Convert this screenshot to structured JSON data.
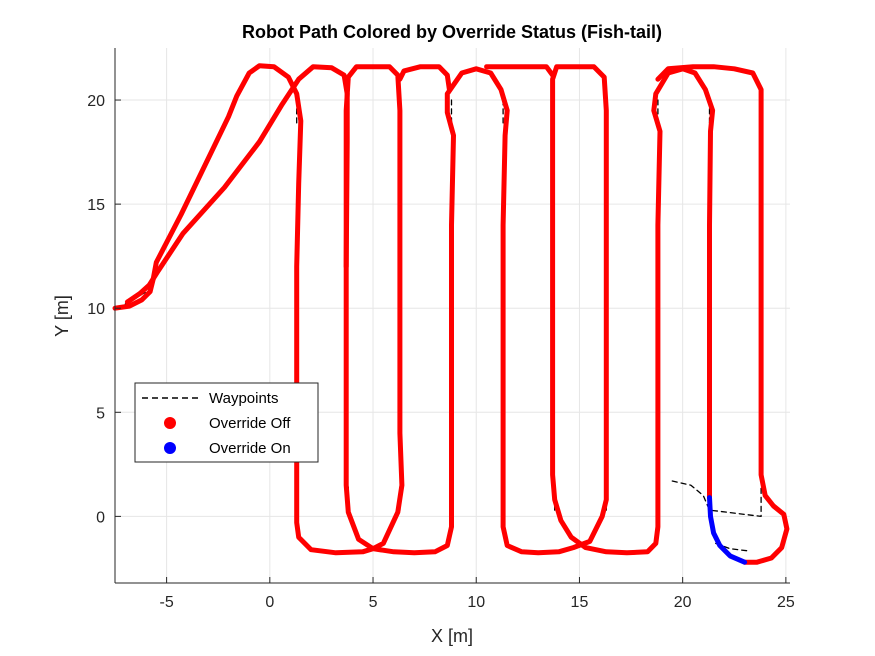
{
  "chart_data": {
    "type": "line",
    "title": "Robot Path Colored by Override Status (Fish-tail)",
    "xlabel": "X [m]",
    "ylabel": "Y [m]",
    "xlim": [
      -7.5,
      25.2
    ],
    "ylim": [
      -3.2,
      22.5
    ],
    "x_ticks": [
      -5,
      0,
      5,
      10,
      15,
      20,
      25
    ],
    "y_ticks": [
      0,
      5,
      10,
      15,
      20
    ],
    "x_tick_labels": [
      "-5",
      "0",
      "5",
      "10",
      "15",
      "20",
      "25"
    ],
    "y_tick_labels": [
      "0",
      "5",
      "10",
      "15",
      "20"
    ],
    "grid": true,
    "legend_position": "center-left",
    "colors": {
      "path_off": "#ff0000",
      "path_on": "#0000ff",
      "waypoints": "#000000",
      "grid": "#e6e6e6",
      "axis": "#262626"
    },
    "series": [
      {
        "name": "Waypoints",
        "style": "dashed",
        "segments": [
          [
            [
              -7,
              10.2
            ],
            [
              -6.4,
              10.55
            ],
            [
              -5.8,
              10.9
            ]
          ],
          [
            [
              1.3,
              18.9
            ],
            [
              1.3,
              19.8
            ]
          ],
          [
            [
              3.8,
              0.3
            ],
            [
              3.8,
              1.5
            ]
          ],
          [
            [
              6.3,
              0.3
            ],
            [
              6.3,
              1.5
            ]
          ],
          [
            [
              8.8,
              18.9
            ],
            [
              8.8,
              20.0
            ]
          ],
          [
            [
              11.3,
              18.9
            ],
            [
              11.3,
              20.0
            ]
          ],
          [
            [
              13.8,
              0.3
            ],
            [
              13.8,
              1.5
            ]
          ],
          [
            [
              16.3,
              0.3
            ],
            [
              16.3,
              1.5
            ]
          ],
          [
            [
              18.8,
              18.9
            ],
            [
              18.8,
              20.0
            ]
          ],
          [
            [
              21.3,
              18.9
            ],
            [
              21.3,
              20.0
            ]
          ],
          [
            [
              19.5,
              1.7
            ],
            [
              20.4,
              1.5
            ],
            [
              21.0,
              1.0
            ],
            [
              21.3,
              0.3
            ],
            [
              23.8,
              0.0
            ],
            [
              23.8,
              1.5
            ]
          ],
          [
            [
              21.6,
              -1.3
            ],
            [
              22.3,
              -1.55
            ],
            [
              23.1,
              -1.65
            ]
          ]
        ]
      },
      {
        "name": "Override Off",
        "marker": "circle",
        "segments": [
          [
            [
              -7.5,
              10.0
            ],
            [
              -6.8,
              10.1
            ],
            [
              -6.2,
              10.4
            ],
            [
              -5.8,
              10.8
            ],
            [
              -5.65,
              11.4
            ],
            [
              -5.5,
              12.2
            ],
            [
              -4.3,
              14.5
            ],
            [
              -2.0,
              19.2
            ],
            [
              -1.6,
              20.2
            ],
            [
              -1.0,
              21.3
            ],
            [
              -0.5,
              21.65
            ],
            [
              0.2,
              21.6
            ],
            [
              0.9,
              21.1
            ],
            [
              1.3,
              20.3
            ],
            [
              1.5,
              19.0
            ],
            [
              1.4,
              16.0
            ],
            [
              1.3,
              12.0
            ],
            [
              1.3,
              6.0
            ],
            [
              1.3,
              0.5
            ],
            [
              1.3,
              -0.3
            ],
            [
              1.4,
              -1.0
            ],
            [
              2.0,
              -1.6
            ],
            [
              3.2,
              -1.75
            ],
            [
              4.5,
              -1.7
            ],
            [
              5.0,
              -1.55
            ],
            [
              5.5,
              -1.3
            ],
            [
              6.2,
              0.2
            ],
            [
              6.4,
              1.5
            ],
            [
              6.3,
              4.0
            ],
            [
              6.3,
              10.0
            ],
            [
              6.3,
              16.0
            ],
            [
              6.3,
              19.5
            ],
            [
              6.2,
              21.2
            ],
            [
              5.8,
              21.6
            ],
            [
              5.0,
              21.6
            ],
            [
              4.2,
              21.6
            ],
            [
              3.8,
              21.1
            ],
            [
              3.7,
              19.5
            ],
            [
              3.7,
              16.0
            ],
            [
              3.7,
              12.0
            ],
            [
              3.7,
              6.0
            ],
            [
              3.7,
              1.5
            ],
            [
              3.8,
              0.2
            ],
            [
              4.3,
              -1.1
            ],
            [
              5.0,
              -1.55
            ],
            [
              6.0,
              -1.7
            ],
            [
              7.0,
              -1.75
            ],
            [
              8.0,
              -1.7
            ],
            [
              8.6,
              -1.4
            ],
            [
              8.8,
              -0.5
            ],
            [
              8.8,
              2.0
            ],
            [
              8.8,
              8.0
            ],
            [
              8.8,
              14.0
            ],
            [
              8.9,
              18.3
            ],
            [
              8.6,
              19.4
            ],
            [
              8.6,
              20.3
            ],
            [
              9.3,
              21.3
            ],
            [
              10.0,
              21.5
            ],
            [
              10.7,
              21.3
            ],
            [
              11.2,
              20.5
            ],
            [
              11.5,
              19.5
            ],
            [
              11.4,
              18.3
            ],
            [
              11.3,
              14.0
            ],
            [
              11.3,
              8.0
            ],
            [
              11.3,
              2.0
            ],
            [
              11.3,
              -0.5
            ],
            [
              11.5,
              -1.4
            ],
            [
              12.2,
              -1.7
            ],
            [
              13.0,
              -1.75
            ],
            [
              14.0,
              -1.7
            ],
            [
              14.7,
              -1.5
            ],
            [
              15.5,
              -1.2
            ],
            [
              16.1,
              0.0
            ],
            [
              16.3,
              0.8
            ],
            [
              16.3,
              2.0
            ],
            [
              16.3,
              8.0
            ],
            [
              16.3,
              14.0
            ],
            [
              16.3,
              19.5
            ],
            [
              16.2,
              21.1
            ],
            [
              15.7,
              21.6
            ],
            [
              14.8,
              21.6
            ],
            [
              13.9,
              21.6
            ],
            [
              13.7,
              21.0
            ],
            [
              13.7,
              19.5
            ],
            [
              13.7,
              14.0
            ],
            [
              13.7,
              8.0
            ],
            [
              13.7,
              2.0
            ],
            [
              13.8,
              0.8
            ],
            [
              14.1,
              -0.2
            ],
            [
              14.6,
              -1.0
            ],
            [
              15.3,
              -1.5
            ],
            [
              16.3,
              -1.7
            ],
            [
              17.3,
              -1.75
            ],
            [
              18.3,
              -1.7
            ],
            [
              18.7,
              -1.3
            ],
            [
              18.8,
              -0.5
            ],
            [
              18.8,
              2.0
            ],
            [
              18.8,
              8.0
            ],
            [
              18.8,
              14.0
            ],
            [
              18.9,
              18.5
            ],
            [
              18.6,
              19.5
            ],
            [
              18.7,
              20.3
            ],
            [
              19.3,
              21.3
            ],
            [
              20.0,
              21.5
            ],
            [
              20.6,
              21.3
            ],
            [
              21.1,
              20.5
            ],
            [
              21.45,
              19.5
            ],
            [
              21.35,
              18.5
            ],
            [
              21.3,
              14.0
            ],
            [
              21.3,
              8.0
            ],
            [
              21.3,
              2.0
            ],
            [
              21.3,
              0.9
            ]
          ],
          [
            [
              -6.9,
              10.3
            ],
            [
              -6.3,
              10.7
            ],
            [
              -5.85,
              11.1
            ],
            [
              -5.4,
              11.8
            ],
            [
              -4.2,
              13.6
            ],
            [
              -2.2,
              15.8
            ],
            [
              -0.5,
              18.0
            ],
            [
              0.6,
              19.8
            ],
            [
              1.4,
              21.0
            ],
            [
              2.1,
              21.6
            ],
            [
              3.0,
              21.55
            ],
            [
              3.6,
              21.2
            ],
            [
              3.75,
              20.3
            ],
            [
              3.75,
              18.0
            ],
            [
              3.7,
              12.0
            ]
          ],
          [
            [
              6.3,
              21.0
            ],
            [
              6.5,
              21.4
            ],
            [
              7.3,
              21.6
            ],
            [
              8.2,
              21.6
            ],
            [
              8.6,
              21.2
            ],
            [
              8.7,
              20.5
            ]
          ],
          [
            [
              10.5,
              21.6
            ],
            [
              11.5,
              21.6
            ],
            [
              12.5,
              21.6
            ],
            [
              13.4,
              21.6
            ],
            [
              13.7,
              21.2
            ]
          ],
          [
            [
              18.8,
              21.0
            ],
            [
              19.3,
              21.5
            ],
            [
              20.5,
              21.6
            ],
            [
              21.5,
              21.6
            ],
            [
              22.5,
              21.5
            ],
            [
              23.4,
              21.3
            ],
            [
              23.8,
              20.5
            ],
            [
              23.8,
              18.0
            ],
            [
              23.8,
              14.0
            ],
            [
              23.8,
              8.0
            ],
            [
              23.8,
              2.0
            ],
            [
              24.0,
              1.0
            ],
            [
              24.4,
              0.5
            ],
            [
              24.9,
              0.1
            ],
            [
              25.05,
              -0.6
            ],
            [
              24.8,
              -1.5
            ],
            [
              24.3,
              -2.0
            ],
            [
              23.6,
              -2.2
            ],
            [
              23.0,
              -2.2
            ]
          ]
        ]
      },
      {
        "name": "Override On",
        "marker": "circle",
        "segments": [
          [
            [
              21.3,
              0.9
            ],
            [
              21.35,
              0.0
            ],
            [
              21.5,
              -0.8
            ],
            [
              21.8,
              -1.4
            ],
            [
              22.3,
              -1.9
            ],
            [
              23.0,
              -2.2
            ]
          ]
        ]
      }
    ]
  }
}
